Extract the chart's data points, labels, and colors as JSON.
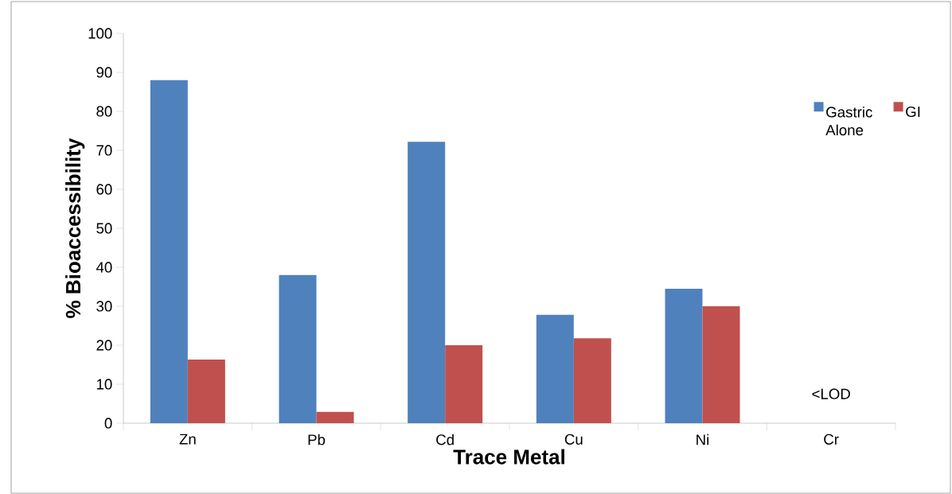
{
  "chart_data": {
    "type": "bar",
    "xlabel": "Trace Metal",
    "ylabel": "% Bioaccessibility",
    "categories": [
      "Zn",
      "Pb",
      "Cd",
      "Cu",
      "Ni",
      "Cr"
    ],
    "series": [
      {
        "name": "Gastric Alone",
        "color": "#4f81bd",
        "values": [
          88,
          38,
          72.2,
          27.8,
          34.5,
          null
        ]
      },
      {
        "name": "GI",
        "color": "#c0504d",
        "values": [
          16.3,
          2.9,
          20,
          21.8,
          30,
          null
        ]
      }
    ],
    "ylim": [
      0,
      100
    ],
    "yticks": [
      0,
      10,
      20,
      30,
      40,
      50,
      60,
      70,
      80,
      90,
      100
    ],
    "legend": "top right",
    "grid": false,
    "annotations": [
      "<LOD"
    ]
  }
}
